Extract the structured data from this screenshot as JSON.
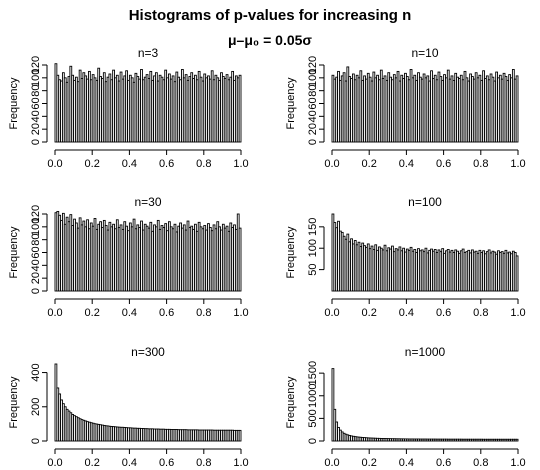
{
  "title": "Histograms of p-values for increasing n",
  "subtitle": "μ–μ₀ = 0.05σ",
  "colors": {
    "bar_fill": "#ffffff",
    "bar_stroke": "#000000",
    "axis": "#000000"
  },
  "chart_data": [
    {
      "type": "bar",
      "title": "n=3",
      "ylabel": "Frequency",
      "xlim": [
        0,
        1
      ],
      "ylim": [
        0,
        120
      ],
      "xticks": [
        0.0,
        0.2,
        0.4,
        0.6,
        0.8,
        1.0
      ],
      "xtick_labels": [
        "0.0",
        "0.2",
        "0.4",
        "0.6",
        "0.8",
        "1.0"
      ],
      "yticks": [
        0,
        20,
        40,
        60,
        80,
        100,
        120
      ],
      "ytick_labels": [
        "0",
        "20",
        "40",
        "60",
        "80",
        "100",
        "120"
      ],
      "bin_width": 0.01,
      "values": [
        122,
        104,
        97,
        95,
        108,
        100,
        93,
        102,
        118,
        104,
        96,
        101,
        94,
        112,
        99,
        108,
        103,
        98,
        110,
        97,
        105,
        100,
        96,
        115,
        102,
        99,
        108,
        94,
        101,
        106,
        97,
        112,
        100,
        104,
        95,
        109,
        98,
        103,
        111,
        96,
        104,
        100,
        93,
        107,
        102,
        98,
        113,
        97,
        101,
        105,
        99,
        110,
        96,
        103,
        108,
        95,
        104,
        101,
        97,
        112,
        100,
        106,
        98,
        103,
        94,
        109,
        101,
        97,
        113,
        100,
        105,
        96,
        102,
        108,
        99,
        104,
        97,
        110,
        101,
        95,
        106,
        100,
        103,
        98,
        111,
        97,
        104,
        100,
        96,
        108,
        102,
        99,
        105,
        97,
        101,
        110,
        96,
        103,
        100,
        104
      ]
    },
    {
      "type": "bar",
      "title": "n=10",
      "ylabel": "Frequency",
      "xlim": [
        0,
        1
      ],
      "ylim": [
        0,
        120
      ],
      "xticks": [
        0.0,
        0.2,
        0.4,
        0.6,
        0.8,
        1.0
      ],
      "xtick_labels": [
        "0.0",
        "0.2",
        "0.4",
        "0.6",
        "0.8",
        "1.0"
      ],
      "yticks": [
        0,
        20,
        40,
        60,
        80,
        100,
        120
      ],
      "ytick_labels": [
        "0",
        "20",
        "40",
        "60",
        "80",
        "100",
        "120"
      ],
      "bin_width": 0.01,
      "values": [
        104,
        98,
        101,
        110,
        96,
        103,
        108,
        95,
        117,
        102,
        99,
        106,
        97,
        104,
        100,
        111,
        96,
        103,
        98,
        107,
        101,
        95,
        109,
        100,
        104,
        97,
        112,
        99,
        103,
        96,
        108,
        101,
        97,
        105,
        100,
        110,
        95,
        104,
        99,
        107,
        102,
        97,
        113,
        100,
        104,
        96,
        108,
        101,
        98,
        106,
        100,
        103,
        95,
        111,
        99,
        104,
        97,
        109,
        102,
        96,
        105,
        100,
        112,
        98,
        103,
        96,
        107,
        101,
        99,
        104,
        97,
        110,
        100,
        95,
        106,
        102,
        98,
        108,
        100,
        104,
        96,
        111,
        99,
        103,
        97,
        106,
        101,
        95,
        109,
        100,
        104,
        98,
        107,
        102,
        96,
        105,
        100,
        113,
        98,
        103
      ]
    },
    {
      "type": "bar",
      "title": "n=30",
      "ylabel": "Frequency",
      "xlim": [
        0,
        1
      ],
      "ylim": [
        0,
        120
      ],
      "xticks": [
        0.0,
        0.2,
        0.4,
        0.6,
        0.8,
        1.0
      ],
      "xtick_labels": [
        "0.0",
        "0.2",
        "0.4",
        "0.6",
        "0.8",
        "1.0"
      ],
      "yticks": [
        0,
        20,
        40,
        60,
        80,
        100,
        120
      ],
      "ytick_labels": [
        "0",
        "20",
        "40",
        "60",
        "80",
        "100",
        "120"
      ],
      "bin_width": 0.01,
      "values": [
        122,
        124,
        118,
        110,
        121,
        104,
        115,
        108,
        119,
        102,
        112,
        106,
        98,
        114,
        103,
        109,
        100,
        111,
        97,
        106,
        101,
        113,
        96,
        104,
        108,
        99,
        110,
        102,
        95,
        107,
        100,
        104,
        97,
        111,
        99,
        103,
        96,
        108,
        101,
        94,
        106,
        100,
        112,
        97,
        103,
        99,
        109,
        95,
        104,
        101,
        98,
        107,
        93,
        103,
        100,
        110,
        96,
        102,
        99,
        105,
        94,
        108,
        100,
        97,
        104,
        92,
        101,
        106,
        98,
        103,
        95,
        109,
        99,
        101,
        96,
        104,
        93,
        107,
        100,
        97,
        102,
        95,
        105,
        99,
        94,
        103,
        97,
        108,
        100,
        95,
        104,
        98,
        101,
        93,
        106,
        99,
        103,
        96,
        120,
        98
      ]
    },
    {
      "type": "bar",
      "title": "n=100",
      "ylabel": "Frequency",
      "xlim": [
        0,
        1
      ],
      "ylim": [
        0,
        180
      ],
      "xticks": [
        0.0,
        0.2,
        0.4,
        0.6,
        0.8,
        1.0
      ],
      "xtick_labels": [
        "0.0",
        "0.2",
        "0.4",
        "0.6",
        "0.8",
        "1.0"
      ],
      "yticks": [
        50,
        100,
        150
      ],
      "ytick_labels": [
        "50",
        "100",
        "150"
      ],
      "bin_width": 0.01,
      "values": [
        180,
        160,
        148,
        163,
        140,
        137,
        128,
        121,
        133,
        115,
        122,
        110,
        118,
        108,
        114,
        104,
        112,
        106,
        102,
        110,
        99,
        105,
        97,
        108,
        95,
        103,
        100,
        96,
        107,
        94,
        101,
        98,
        105,
        92,
        99,
        96,
        103,
        94,
        100,
        91,
        98,
        95,
        102,
        93,
        97,
        90,
        99,
        94,
        96,
        92,
        100,
        89,
        95,
        98,
        93,
        97,
        90,
        96,
        92,
        99,
        88,
        94,
        97,
        91,
        95,
        90,
        96,
        93,
        88,
        94,
        98,
        90,
        92,
        95,
        89,
        96,
        91,
        93,
        88,
        95,
        90,
        94,
        87,
        92,
        96,
        89,
        93,
        91,
        86,
        94,
        90,
        92,
        88,
        95,
        89,
        91,
        87,
        93,
        90,
        82
      ]
    },
    {
      "type": "bar",
      "title": "n=300",
      "ylabel": "Frequency",
      "xlim": [
        0,
        1
      ],
      "ylim": [
        0,
        450
      ],
      "xticks": [
        0.0,
        0.2,
        0.4,
        0.6,
        0.8,
        1.0
      ],
      "xtick_labels": [
        "0.0",
        "0.2",
        "0.4",
        "0.6",
        "0.8",
        "1.0"
      ],
      "yticks": [
        0,
        200,
        400
      ],
      "ytick_labels": [
        "0",
        "200",
        "400"
      ],
      "bin_width": 0.01,
      "values": [
        450,
        310,
        275,
        240,
        218,
        200,
        185,
        175,
        165,
        155,
        148,
        142,
        136,
        130,
        125,
        121,
        117,
        113,
        110,
        107,
        104,
        101,
        99,
        97,
        95,
        93,
        91,
        89,
        88,
        86,
        85,
        84,
        83,
        82,
        81,
        80,
        80,
        79,
        78,
        77,
        77,
        76,
        75,
        75,
        74,
        74,
        73,
        73,
        72,
        72,
        71,
        71,
        71,
        70,
        70,
        70,
        69,
        69,
        69,
        68,
        68,
        68,
        67,
        67,
        67,
        67,
        66,
        66,
        66,
        66,
        66,
        65,
        65,
        65,
        65,
        65,
        65,
        64,
        64,
        64,
        64,
        64,
        64,
        64,
        64,
        63,
        63,
        63,
        63,
        63,
        63,
        63,
        63,
        63,
        63,
        63,
        62,
        62,
        62,
        62
      ]
    },
    {
      "type": "bar",
      "title": "n=1000",
      "ylabel": "Frequency",
      "xlim": [
        0,
        1
      ],
      "ylim": [
        0,
        1600
      ],
      "xticks": [
        0.0,
        0.2,
        0.4,
        0.6,
        0.8,
        1.0
      ],
      "xtick_labels": [
        "0.0",
        "0.2",
        "0.4",
        "0.6",
        "0.8",
        "1.0"
      ],
      "yticks": [
        0,
        500,
        1000,
        1500
      ],
      "ytick_labels": [
        "0",
        "500",
        "1000",
        "1500"
      ],
      "bin_width": 0.01,
      "values": [
        1600,
        700,
        420,
        300,
        240,
        200,
        170,
        150,
        135,
        122,
        112,
        104,
        97,
        91,
        86,
        82,
        78,
        75,
        72,
        69,
        67,
        65,
        63,
        61,
        59,
        58,
        56,
        55,
        54,
        53,
        52,
        51,
        50,
        50,
        49,
        48,
        48,
        47,
        47,
        46,
        46,
        45,
        45,
        45,
        44,
        44,
        44,
        43,
        43,
        43,
        43,
        42,
        42,
        42,
        42,
        42,
        41,
        41,
        41,
        41,
        41,
        41,
        40,
        40,
        40,
        40,
        40,
        40,
        40,
        40,
        39,
        39,
        39,
        39,
        39,
        39,
        39,
        39,
        39,
        39,
        39,
        38,
        38,
        38,
        38,
        38,
        38,
        38,
        38,
        38,
        38,
        38,
        38,
        38,
        38,
        38,
        38,
        38,
        38,
        38
      ]
    }
  ]
}
